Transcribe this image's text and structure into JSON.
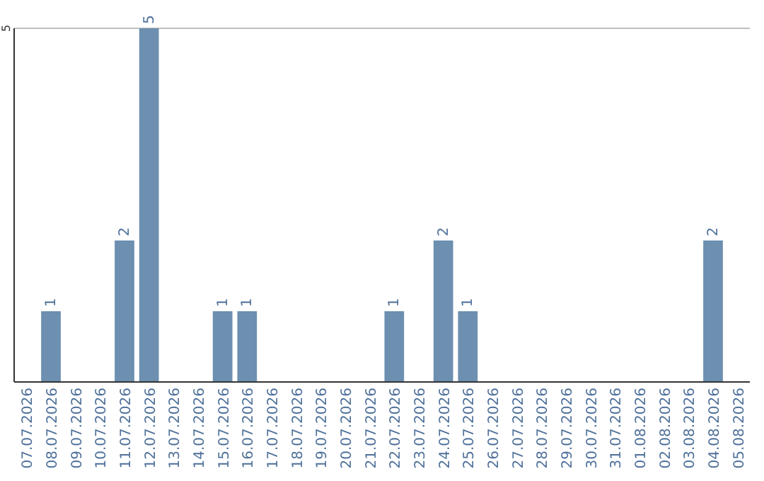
{
  "chart_data": {
    "type": "bar",
    "categories": [
      "07.07.2026",
      "08.07.2026",
      "09.07.2026",
      "10.07.2026",
      "11.07.2026",
      "12.07.2026",
      "13.07.2026",
      "14.07.2026",
      "15.07.2026",
      "16.07.2026",
      "17.07.2026",
      "18.07.2026",
      "19.07.2026",
      "20.07.2026",
      "21.07.2026",
      "22.07.2026",
      "23.07.2026",
      "24.07.2026",
      "25.07.2026",
      "26.07.2026",
      "27.07.2026",
      "28.07.2026",
      "29.07.2026",
      "30.07.2026",
      "31.07.2026",
      "01.08.2026",
      "02.08.2026",
      "03.08.2026",
      "04.08.2026",
      "05.08.2026"
    ],
    "values": [
      0,
      1,
      0,
      0,
      2,
      5,
      0,
      0,
      1,
      1,
      0,
      0,
      0,
      0,
      0,
      1,
      0,
      2,
      1,
      0,
      0,
      0,
      0,
      0,
      0,
      0,
      0,
      0,
      2,
      0
    ],
    "value_labels": [
      null,
      "1",
      null,
      null,
      "2",
      "5",
      null,
      null,
      "1",
      "1",
      null,
      null,
      null,
      null,
      null,
      "1",
      null,
      "2",
      "1",
      null,
      null,
      null,
      null,
      null,
      null,
      null,
      null,
      null,
      "2",
      null
    ],
    "color": "#6d8fb0",
    "ylim": [
      0,
      5
    ],
    "yticks": [
      5
    ],
    "ref_lines": [
      {
        "axis": "y",
        "value": 5,
        "color": "#c0c0c0"
      }
    ]
  }
}
